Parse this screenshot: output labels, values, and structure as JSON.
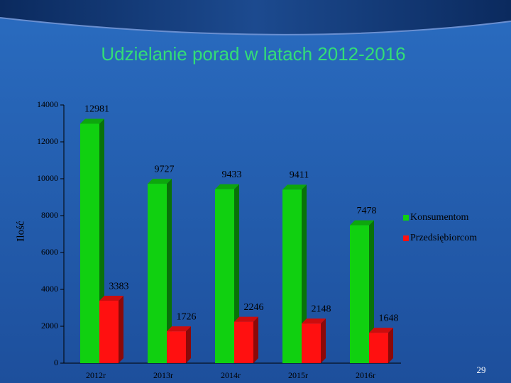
{
  "chart_data": {
    "type": "bar",
    "title": "Udzielanie porad w latach 2012-2016",
    "y_label": "Ilość",
    "categories": [
      "2012r",
      "2013r",
      "2014r",
      "2015r",
      "2016r"
    ],
    "series": [
      {
        "name": "Konsumentom",
        "color": "#10d010",
        "values": [
          12981,
          9727,
          9433,
          9411,
          7478
        ]
      },
      {
        "name": "Przedsiębiorcom",
        "color": "#ff1010",
        "values": [
          3383,
          1726,
          2246,
          2148,
          1648
        ]
      }
    ],
    "ylim": [
      0,
      14000
    ],
    "yticks": [
      0,
      2000,
      4000,
      6000,
      8000,
      10000,
      12000,
      14000
    ],
    "legend": "right",
    "page_number": "29"
  }
}
